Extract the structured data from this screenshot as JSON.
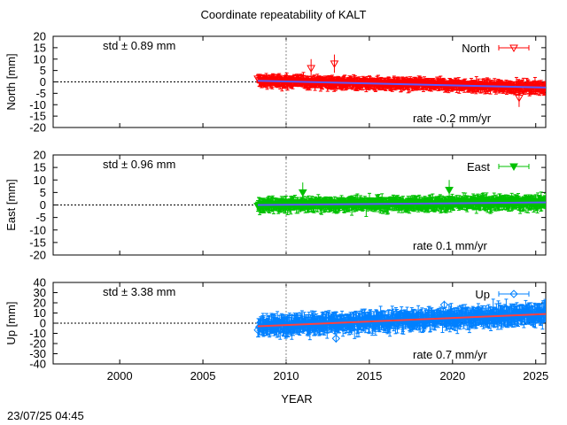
{
  "title": "Coordinate repeatability of KALT",
  "xlabel": "YEAR",
  "timestamp": "23/07/25 04:45",
  "x_ticks": [
    "2000",
    "2005",
    "2010",
    "2015",
    "2020",
    "2025"
  ],
  "colors": {
    "north": "#ff0000",
    "east": "#00c000",
    "up": "#0080ff",
    "trend": "#5a5aff",
    "up_trend": "#ff4040"
  },
  "chart_data": [
    {
      "type": "scatter",
      "component": "north",
      "legend": "North",
      "ylabel": "North [mm]",
      "ylim": [
        -20,
        20
      ],
      "xlim": [
        1996.0,
        2025.6
      ],
      "y_ticks": [
        "20",
        "15",
        "10",
        "5",
        "0",
        "-5",
        "-10",
        "-15",
        "-20"
      ],
      "std_text": "std ± 0.89 mm",
      "rate_text": "rate -0.2 mm/yr",
      "data_start": 2008.3,
      "data_end": 2025.6,
      "trend": {
        "x": [
          2008.3,
          2025.6
        ],
        "y": [
          0.5,
          -2.5
        ]
      },
      "scatter_sd": 0.89,
      "outliers": [
        {
          "x": 2012.9,
          "y": 8
        },
        {
          "x": 2011.5,
          "y": 6
        },
        {
          "x": 2024.0,
          "y": -7
        }
      ],
      "color": "#ff0000"
    },
    {
      "type": "scatter",
      "component": "east",
      "legend": "East",
      "ylabel": "East [mm]",
      "ylim": [
        -20,
        20
      ],
      "xlim": [
        1996.0,
        2025.6
      ],
      "y_ticks": [
        "20",
        "15",
        "10",
        "5",
        "0",
        "-5",
        "-10",
        "-15",
        "-20"
      ],
      "std_text": "std ± 0.96 mm",
      "rate_text": "rate  0.1 mm/yr",
      "data_start": 2008.3,
      "data_end": 2025.6,
      "trend": {
        "x": [
          2008.3,
          2025.6
        ],
        "y": [
          0.0,
          1.0
        ]
      },
      "scatter_sd": 0.96,
      "outliers": [
        {
          "x": 2011.0,
          "y": 5
        },
        {
          "x": 2019.8,
          "y": 6
        }
      ],
      "color": "#00c000"
    },
    {
      "type": "scatter",
      "component": "up",
      "legend": "Up",
      "ylabel": "Up [mm]",
      "ylim": [
        -40,
        40
      ],
      "xlim": [
        1996.0,
        2025.6
      ],
      "y_ticks": [
        "40",
        "30",
        "20",
        "10",
        "0",
        "-10",
        "-20",
        "-30",
        "-40"
      ],
      "std_text": "std ± 3.38 mm",
      "rate_text": "rate  0.7 mm/yr",
      "data_start": 2008.3,
      "data_end": 2025.6,
      "trend": {
        "x": [
          2008.3,
          2025.6
        ],
        "y": [
          -3.0,
          9.0
        ]
      },
      "scatter_sd": 3.38,
      "outliers": [
        {
          "x": 2019.5,
          "y": 18
        },
        {
          "x": 2013.0,
          "y": -15
        }
      ],
      "color": "#0080ff"
    }
  ]
}
